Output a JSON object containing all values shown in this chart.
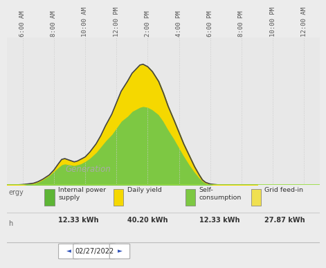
{
  "background_color": "#ececec",
  "plot_background": "#e8e8e8",
  "chart_label_bg": "#e8e8e8",
  "x_ticks": [
    "6:00 AM",
    "8:00 AM",
    "10:00 AM",
    "12:00 PM",
    "2:00 PM",
    "4:00 PM",
    "6:00 PM",
    "8:00 PM",
    "10:00 PM",
    "12:00 AM"
  ],
  "x_tick_positions": [
    6,
    8,
    10,
    12,
    14,
    16,
    18,
    20,
    22,
    24
  ],
  "ylim": [
    0,
    9
  ],
  "xlim": [
    5,
    25
  ],
  "grid_color": "#cccccc",
  "color_yellow": "#f5d800",
  "color_green_fill": "#7dc843",
  "color_outline": "#444444",
  "color_baseline": "#99dd44",
  "legend_items": [
    {
      "label": "Internal power\nsupply",
      "color": "#5db535",
      "value": "12.33 kWh"
    },
    {
      "label": "Daily yield",
      "color": "#f5d800",
      "value": "40.20 kWh"
    },
    {
      "label": "Self-\nconsumption",
      "color": "#7dc843",
      "value": "12.33 kWh"
    },
    {
      "label": "Grid feed-in",
      "color": "#f0e050",
      "value": "27.87 kWh"
    }
  ],
  "footer_text": "02/27/2022",
  "generation_label": "Generation",
  "curve_x": [
    5.0,
    5.3,
    5.7,
    6.0,
    6.3,
    6.7,
    7.0,
    7.3,
    7.7,
    8.0,
    8.3,
    8.5,
    8.7,
    9.0,
    9.3,
    9.5,
    9.7,
    10.0,
    10.3,
    10.7,
    11.0,
    11.3,
    11.7,
    12.0,
    12.3,
    12.7,
    13.0,
    13.3,
    13.5,
    13.7,
    14.0,
    14.3,
    14.7,
    15.0,
    15.3,
    15.7,
    16.0,
    16.3,
    16.7,
    17.0,
    17.3,
    17.5,
    17.7,
    18.0,
    18.3,
    18.5,
    19.0,
    19.5,
    20.0,
    20.5,
    21.0
  ],
  "curve_generation": [
    0.0,
    0.0,
    0.0,
    0.02,
    0.05,
    0.1,
    0.2,
    0.35,
    0.6,
    0.9,
    1.3,
    1.55,
    1.6,
    1.5,
    1.4,
    1.45,
    1.55,
    1.7,
    2.0,
    2.5,
    3.0,
    3.6,
    4.3,
    5.0,
    5.7,
    6.3,
    6.8,
    7.1,
    7.3,
    7.35,
    7.2,
    6.9,
    6.3,
    5.6,
    4.8,
    3.9,
    3.2,
    2.5,
    1.7,
    1.1,
    0.6,
    0.3,
    0.15,
    0.05,
    0.02,
    0.0,
    0.0,
    0.0,
    0.0,
    0.0,
    0.0
  ],
  "curve_consumption": [
    0.0,
    0.0,
    0.0,
    0.02,
    0.05,
    0.1,
    0.2,
    0.35,
    0.6,
    0.85,
    1.1,
    1.25,
    1.3,
    1.25,
    1.2,
    1.25,
    1.3,
    1.45,
    1.65,
    2.0,
    2.35,
    2.7,
    3.1,
    3.5,
    3.9,
    4.2,
    4.5,
    4.65,
    4.75,
    4.8,
    4.75,
    4.6,
    4.3,
    3.9,
    3.4,
    2.8,
    2.3,
    1.8,
    1.2,
    0.8,
    0.45,
    0.25,
    0.12,
    0.04,
    0.01,
    0.0,
    0.0,
    0.0,
    0.0,
    0.0,
    0.0
  ]
}
